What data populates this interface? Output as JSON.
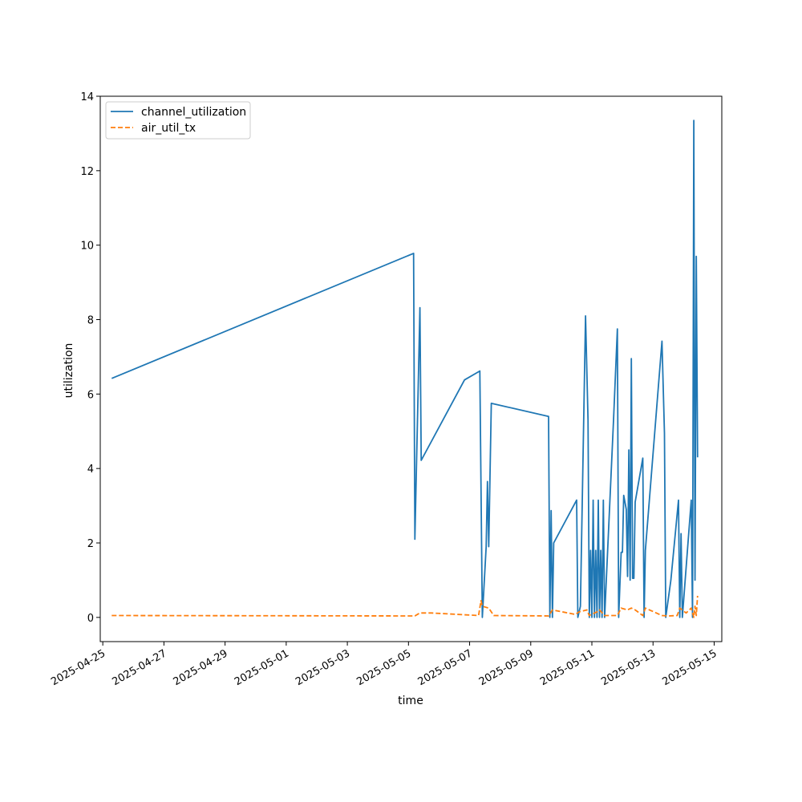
{
  "chart_data": {
    "type": "line",
    "title": "",
    "xlabel": "time",
    "ylabel": "utilization",
    "xlim": [
      "2025-04-24T22:00",
      "2025-05-15T06:00"
    ],
    "ylim": [
      -0.65,
      14
    ],
    "x_ticks": [
      "2025-04-25",
      "2025-04-27",
      "2025-04-29",
      "2025-05-01",
      "2025-05-03",
      "2025-05-05",
      "2025-05-07",
      "2025-05-09",
      "2025-05-11",
      "2025-05-13",
      "2025-05-15"
    ],
    "y_ticks": [
      "0",
      "2",
      "4",
      "6",
      "8",
      "10",
      "12",
      "14"
    ],
    "grid": false,
    "legend_position": "top-left",
    "series": [
      {
        "name": "channel_utilization",
        "color": "#1f77b4",
        "style": "solid",
        "points": [
          [
            "2025-04-25T07:00",
            6.42
          ],
          [
            "2025-05-05T04:00",
            9.78
          ],
          [
            "2025-05-05T05:00",
            2.1
          ],
          [
            "2025-05-05T09:00",
            8.32
          ],
          [
            "2025-05-05T10:00",
            4.22
          ],
          [
            "2025-05-06T20:00",
            6.38
          ],
          [
            "2025-05-07T08:00",
            6.62
          ],
          [
            "2025-05-07T10:00",
            0.0
          ],
          [
            "2025-05-07T13:00",
            1.9
          ],
          [
            "2025-05-07T14:00",
            3.65
          ],
          [
            "2025-05-07T15:00",
            1.9
          ],
          [
            "2025-05-07T17:00",
            5.75
          ],
          [
            "2025-05-09T14:00",
            5.4
          ],
          [
            "2025-05-09T15:00",
            0.0
          ],
          [
            "2025-05-09T16:00",
            2.87
          ],
          [
            "2025-05-09T17:00",
            0.0
          ],
          [
            "2025-05-09T18:00",
            2.0
          ],
          [
            "2025-05-10T12:00",
            3.15
          ],
          [
            "2025-05-10T13:00",
            0.0
          ],
          [
            "2025-05-10T15:00",
            0.3
          ],
          [
            "2025-05-10T19:00",
            8.1
          ],
          [
            "2025-05-10T21:00",
            5.3
          ],
          [
            "2025-05-10T22:00",
            0.0
          ],
          [
            "2025-05-10T23:00",
            1.8
          ],
          [
            "2025-05-11T00:00",
            0.0
          ],
          [
            "2025-05-11T01:00",
            3.15
          ],
          [
            "2025-05-11T02:00",
            0.0
          ],
          [
            "2025-05-11T03:00",
            1.8
          ],
          [
            "2025-05-11T04:00",
            0.0
          ],
          [
            "2025-05-11T05:00",
            3.15
          ],
          [
            "2025-05-11T06:00",
            0.0
          ],
          [
            "2025-05-11T07:00",
            1.8
          ],
          [
            "2025-05-11T08:00",
            0.0
          ],
          [
            "2025-05-11T09:00",
            3.15
          ],
          [
            "2025-05-11T10:00",
            0.0
          ],
          [
            "2025-05-11T17:00",
            5.3
          ],
          [
            "2025-05-11T20:00",
            7.75
          ],
          [
            "2025-05-11T21:00",
            0.0
          ],
          [
            "2025-05-11T23:00",
            1.75
          ],
          [
            "2025-05-12T00:00",
            1.75
          ],
          [
            "2025-05-12T01:00",
            3.28
          ],
          [
            "2025-05-12T03:00",
            2.9
          ],
          [
            "2025-05-12T04:00",
            1.1
          ],
          [
            "2025-05-12T05:00",
            4.5
          ],
          [
            "2025-05-12T06:00",
            1.0
          ],
          [
            "2025-05-12T07:00",
            6.95
          ],
          [
            "2025-05-12T08:00",
            1.05
          ],
          [
            "2025-05-12T09:00",
            1.05
          ],
          [
            "2025-05-12T10:00",
            3.1
          ],
          [
            "2025-05-12T16:00",
            4.28
          ],
          [
            "2025-05-12T17:00",
            0.0
          ],
          [
            "2025-05-12T18:00",
            1.8
          ],
          [
            "2025-05-13T07:00",
            7.42
          ],
          [
            "2025-05-13T09:00",
            4.95
          ],
          [
            "2025-05-13T10:00",
            0.0
          ],
          [
            "2025-05-13T14:00",
            1.0
          ],
          [
            "2025-05-13T20:00",
            3.15
          ],
          [
            "2025-05-13T21:00",
            0.0
          ],
          [
            "2025-05-13T22:00",
            2.25
          ],
          [
            "2025-05-13T23:00",
            0.0
          ],
          [
            "2025-05-14T06:00",
            3.15
          ],
          [
            "2025-05-14T07:00",
            0.0
          ],
          [
            "2025-05-14T08:00",
            13.35
          ],
          [
            "2025-05-14T09:00",
            1.0
          ],
          [
            "2025-05-14T10:00",
            9.7
          ],
          [
            "2025-05-14T11:00",
            4.3
          ]
        ]
      },
      {
        "name": "air_util_tx",
        "color": "#ff7f0e",
        "style": "dashed",
        "points": [
          [
            "2025-04-25T07:00",
            0.05
          ],
          [
            "2025-05-05T05:00",
            0.04
          ],
          [
            "2025-05-05T09:00",
            0.12
          ],
          [
            "2025-05-05T18:00",
            0.12
          ],
          [
            "2025-05-07T07:00",
            0.05
          ],
          [
            "2025-05-07T09:00",
            0.45
          ],
          [
            "2025-05-07T10:00",
            0.3
          ],
          [
            "2025-05-07T15:00",
            0.25
          ],
          [
            "2025-05-07T19:00",
            0.05
          ],
          [
            "2025-05-09T14:00",
            0.04
          ],
          [
            "2025-05-09T17:00",
            0.2
          ],
          [
            "2025-05-10T11:00",
            0.08
          ],
          [
            "2025-05-10T14:00",
            0.15
          ],
          [
            "2025-05-10T20:00",
            0.2
          ],
          [
            "2025-05-10T22:00",
            0.05
          ],
          [
            "2025-05-11T04:00",
            0.15
          ],
          [
            "2025-05-11T06:00",
            0.2
          ],
          [
            "2025-05-11T10:00",
            0.05
          ],
          [
            "2025-05-11T20:00",
            0.05
          ],
          [
            "2025-05-11T23:00",
            0.25
          ],
          [
            "2025-05-12T04:00",
            0.2
          ],
          [
            "2025-05-12T07:00",
            0.25
          ],
          [
            "2025-05-12T10:00",
            0.2
          ],
          [
            "2025-05-12T16:00",
            0.05
          ],
          [
            "2025-05-12T18:00",
            0.25
          ],
          [
            "2025-05-13T07:00",
            0.05
          ],
          [
            "2025-05-13T12:00",
            0.04
          ],
          [
            "2025-05-13T19:00",
            0.05
          ],
          [
            "2025-05-13T21:00",
            0.25
          ],
          [
            "2025-05-14T02:00",
            0.12
          ],
          [
            "2025-05-14T06:00",
            0.25
          ],
          [
            "2025-05-14T08:00",
            0.0
          ],
          [
            "2025-05-14T09:00",
            0.3
          ],
          [
            "2025-05-14T10:00",
            0.05
          ],
          [
            "2025-05-14T11:00",
            0.58
          ]
        ]
      }
    ]
  }
}
